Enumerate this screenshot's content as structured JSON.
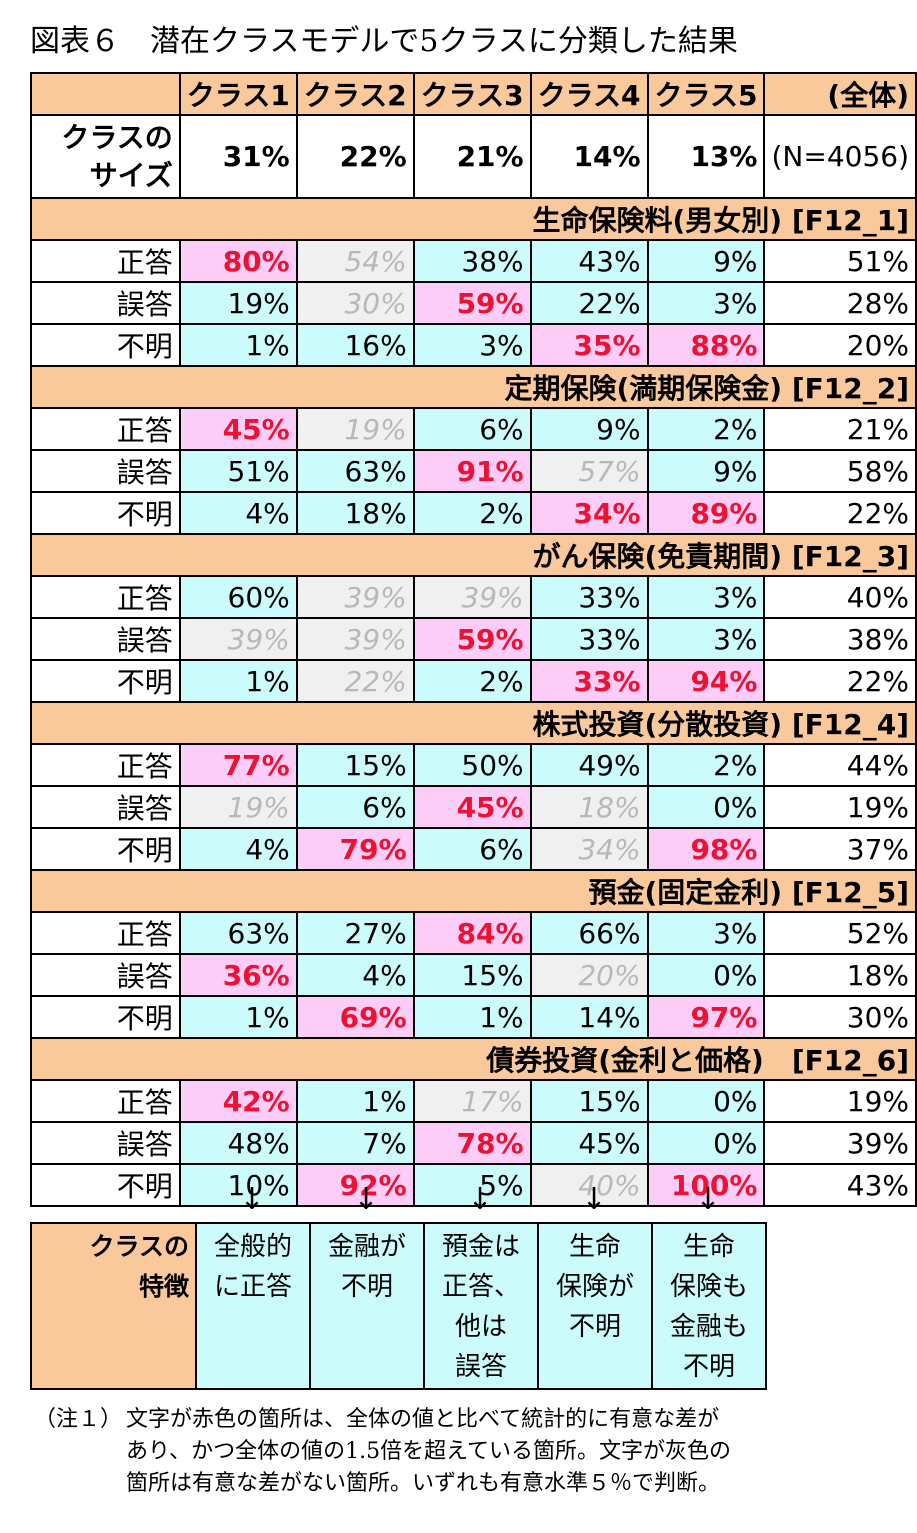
{
  "title": "図表６　潜在クラスモデルで5クラスに分類した結果",
  "header": {
    "corner": "",
    "classes": [
      "クラス1",
      "クラス2",
      "クラス3",
      "クラス4",
      "クラス5"
    ],
    "total": "(全体)"
  },
  "size_row": {
    "label_line1": "クラスの",
    "label_line2": "サイズ",
    "values": [
      "31%",
      "22%",
      "21%",
      "14%",
      "13%"
    ],
    "total": "(N=4056)"
  },
  "sections": [
    {
      "title": "生命保険料(男女別) [F12_1]",
      "rows": [
        {
          "label": "正答",
          "values": [
            "80%",
            "54%",
            "38%",
            "43%",
            "9%"
          ],
          "styles": [
            "p",
            "g",
            "c",
            "c",
            "c"
          ],
          "total": "51%"
        },
        {
          "label": "誤答",
          "values": [
            "19%",
            "30%",
            "59%",
            "22%",
            "3%"
          ],
          "styles": [
            "c",
            "g",
            "p",
            "c",
            "c"
          ],
          "total": "28%"
        },
        {
          "label": "不明",
          "values": [
            "1%",
            "16%",
            "3%",
            "35%",
            "88%"
          ],
          "styles": [
            "c",
            "c",
            "c",
            "p",
            "p"
          ],
          "total": "20%"
        }
      ]
    },
    {
      "title": "定期保険(満期保険金) [F12_2]",
      "rows": [
        {
          "label": "正答",
          "values": [
            "45%",
            "19%",
            "6%",
            "9%",
            "2%"
          ],
          "styles": [
            "p",
            "g",
            "c",
            "c",
            "c"
          ],
          "total": "21%"
        },
        {
          "label": "誤答",
          "values": [
            "51%",
            "63%",
            "91%",
            "57%",
            "9%"
          ],
          "styles": [
            "c",
            "c",
            "p",
            "g",
            "c"
          ],
          "total": "58%"
        },
        {
          "label": "不明",
          "values": [
            "4%",
            "18%",
            "2%",
            "34%",
            "89%"
          ],
          "styles": [
            "c",
            "c",
            "c",
            "p",
            "p"
          ],
          "total": "22%"
        }
      ]
    },
    {
      "title": "がん保険(免責期間) [F12_3]",
      "rows": [
        {
          "label": "正答",
          "values": [
            "60%",
            "39%",
            "39%",
            "33%",
            "3%"
          ],
          "styles": [
            "c",
            "g",
            "g",
            "c",
            "c"
          ],
          "total": "40%"
        },
        {
          "label": "誤答",
          "values": [
            "39%",
            "39%",
            "59%",
            "33%",
            "3%"
          ],
          "styles": [
            "g",
            "g",
            "p",
            "c",
            "c"
          ],
          "total": "38%"
        },
        {
          "label": "不明",
          "values": [
            "1%",
            "22%",
            "2%",
            "33%",
            "94%"
          ],
          "styles": [
            "c",
            "g",
            "c",
            "p",
            "p"
          ],
          "total": "22%"
        }
      ]
    },
    {
      "title": "株式投資(分散投資) [F12_4]",
      "rows": [
        {
          "label": "正答",
          "values": [
            "77%",
            "15%",
            "50%",
            "49%",
            "2%"
          ],
          "styles": [
            "p",
            "c",
            "c",
            "c",
            "c"
          ],
          "total": "44%"
        },
        {
          "label": "誤答",
          "values": [
            "19%",
            "6%",
            "45%",
            "18%",
            "0%"
          ],
          "styles": [
            "g",
            "c",
            "p",
            "g",
            "c"
          ],
          "total": "19%"
        },
        {
          "label": "不明",
          "values": [
            "4%",
            "79%",
            "6%",
            "34%",
            "98%"
          ],
          "styles": [
            "c",
            "p",
            "c",
            "g",
            "p"
          ],
          "total": "37%"
        }
      ]
    },
    {
      "title": "預金(固定金利) [F12_5]",
      "rows": [
        {
          "label": "正答",
          "values": [
            "63%",
            "27%",
            "84%",
            "66%",
            "3%"
          ],
          "styles": [
            "c",
            "c",
            "p",
            "c",
            "c"
          ],
          "total": "52%"
        },
        {
          "label": "誤答",
          "values": [
            "36%",
            "4%",
            "15%",
            "20%",
            "0%"
          ],
          "styles": [
            "p",
            "c",
            "c",
            "g",
            "c"
          ],
          "total": "18%"
        },
        {
          "label": "不明",
          "values": [
            "1%",
            "69%",
            "1%",
            "14%",
            "97%"
          ],
          "styles": [
            "c",
            "p",
            "c",
            "c",
            "p"
          ],
          "total": "30%"
        }
      ]
    },
    {
      "title": "債券投資(金利と価格)　[F12_6]",
      "rows": [
        {
          "label": "正答",
          "values": [
            "42%",
            "1%",
            "17%",
            "15%",
            "0%"
          ],
          "styles": [
            "p",
            "c",
            "g",
            "c",
            "c"
          ],
          "total": "19%"
        },
        {
          "label": "誤答",
          "values": [
            "48%",
            "7%",
            "78%",
            "45%",
            "0%"
          ],
          "styles": [
            "c",
            "c",
            "p",
            "c",
            "c"
          ],
          "total": "39%"
        },
        {
          "label": "不明",
          "values": [
            "10%",
            "92%",
            "5%",
            "40%",
            "100%"
          ],
          "styles": [
            "c",
            "p",
            "c",
            "g",
            "p"
          ],
          "total": "43%"
        }
      ]
    }
  ],
  "arrow_glyph": "↓",
  "features": {
    "label_line1": "クラスの",
    "label_line2": "特徴",
    "cells": [
      [
        "全般的",
        "に正答"
      ],
      [
        "金融が",
        "不明"
      ],
      [
        "預金は",
        "正答、",
        "他は",
        "誤答"
      ],
      [
        "生命",
        "保険が",
        "不明"
      ],
      [
        "生命",
        "保険も",
        "金融も",
        "不明"
      ]
    ]
  },
  "note": {
    "head": "（注１）",
    "line1": "文字が赤色の箇所は、全体の値と比べて統計的に有意な差が",
    "line2": "あり、かつ全体の値の1.5倍を超えている箇所。文字が灰色の",
    "line3": "箇所は有意な差がない箇所。いずれも有意水準５％で判断。"
  },
  "colors": {
    "header_orange": "#f9c89b",
    "cyan_cell": "#ccfbfb",
    "pink_cell": "#fccdf7",
    "red_text": "#ee1133",
    "gray_cell": "#f0f0f0",
    "gray_text": "#b8b8b8"
  }
}
